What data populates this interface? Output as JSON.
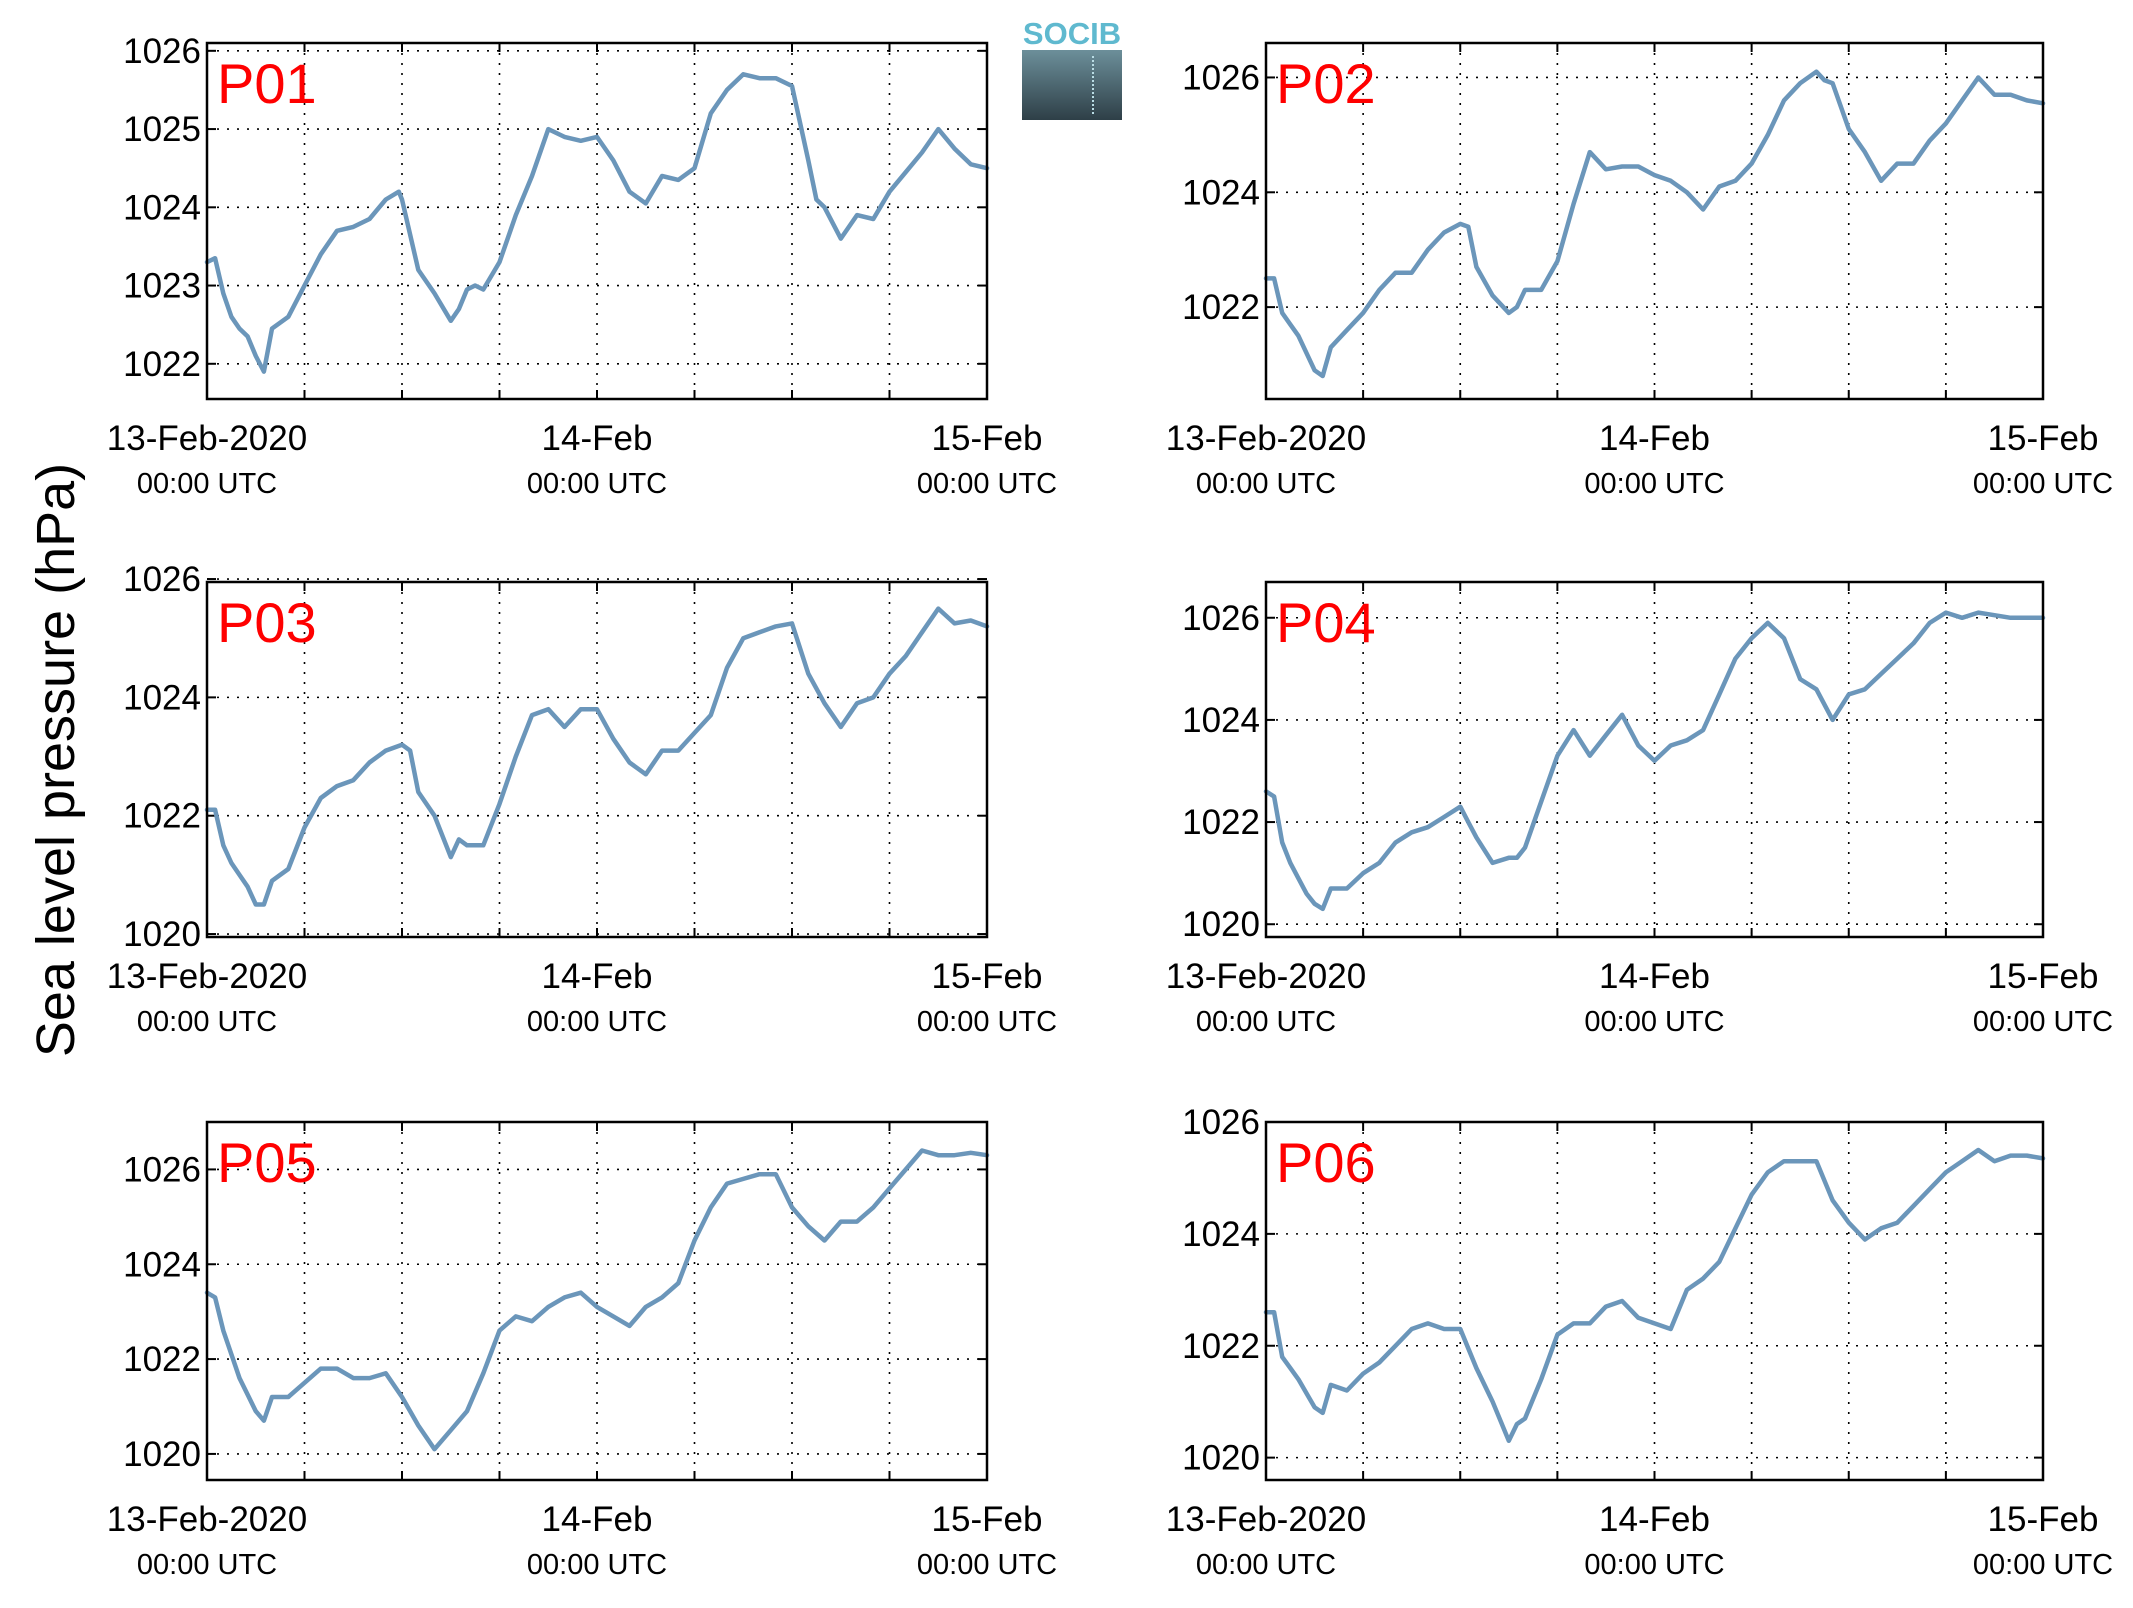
{
  "figure": {
    "ylabel": "Sea level pressure (hPa)",
    "logo_text": "SOCIB",
    "line_color": "#6b96ba",
    "station_label_color": "#ff0000"
  },
  "chart_data": [
    {
      "type": "line",
      "title": "P01",
      "x_range": [
        0,
        48
      ],
      "ylim": [
        1021.55,
        1026.1
      ],
      "yticks": [
        1022,
        1023,
        1024,
        1025,
        1026
      ],
      "x_tick_labels": [
        {
          "h": 0,
          "date": "13-Feb-2020",
          "time": "00:00 UTC"
        },
        {
          "h": 24,
          "date": "14-Feb",
          "time": "00:00 UTC"
        },
        {
          "h": 48,
          "date": "15-Feb",
          "time": "00:00 UTC"
        }
      ],
      "grid": true,
      "series": [
        {
          "x": [
            0,
            0.5,
            1,
            1.5,
            2,
            2.5,
            3,
            3.5,
            4,
            5,
            6,
            7,
            8,
            9,
            10,
            11,
            11.8,
            12,
            13,
            14,
            15,
            15.5,
            16,
            16.5,
            17,
            18,
            19,
            20,
            21,
            22,
            23,
            24,
            25,
            26,
            27,
            28,
            29,
            30,
            31,
            32,
            33,
            34,
            35,
            36,
            37,
            37.5,
            38,
            39,
            40,
            41,
            42,
            43,
            44,
            45,
            46,
            47,
            48
          ],
          "y": [
            1023.3,
            1023.35,
            1022.9,
            1022.6,
            1022.45,
            1022.35,
            1022.1,
            1021.9,
            1022.45,
            1022.6,
            1023.0,
            1023.4,
            1023.7,
            1023.75,
            1023.85,
            1024.1,
            1024.2,
            1024.1,
            1023.2,
            1022.9,
            1022.55,
            1022.7,
            1022.95,
            1023.0,
            1022.95,
            1023.3,
            1023.9,
            1024.4,
            1025.0,
            1024.9,
            1024.85,
            1024.9,
            1024.6,
            1024.2,
            1024.05,
            1024.4,
            1024.35,
            1024.5,
            1025.2,
            1025.5,
            1025.7,
            1025.65,
            1025.65,
            1025.55,
            1024.6,
            1024.1,
            1024.0,
            1023.6,
            1023.9,
            1023.85,
            1024.2,
            1024.45,
            1024.7,
            1025.0,
            1024.75,
            1024.55,
            1024.5
          ]
        }
      ]
    },
    {
      "type": "line",
      "title": "P02",
      "x_range": [
        0,
        48
      ],
      "ylim": [
        1020.4,
        1026.6
      ],
      "yticks": [
        1022,
        1024,
        1026
      ],
      "x_tick_labels": [
        {
          "h": 0,
          "date": "13-Feb-2020",
          "time": "00:00 UTC"
        },
        {
          "h": 24,
          "date": "14-Feb",
          "time": "00:00 UTC"
        },
        {
          "h": 48,
          "date": "15-Feb",
          "time": "00:00 UTC"
        }
      ],
      "grid": true,
      "series": [
        {
          "x": [
            0,
            0.5,
            1,
            1.5,
            2,
            2.5,
            3,
            3.5,
            4,
            5,
            6,
            7,
            8,
            9,
            10,
            11,
            12,
            12.5,
            13,
            14,
            15,
            15.5,
            16,
            17,
            18,
            19,
            20,
            21,
            22,
            23,
            24,
            25,
            26,
            27,
            28,
            29,
            30,
            31,
            32,
            33,
            34,
            34.5,
            35,
            36,
            37,
            38,
            39,
            40,
            41,
            42,
            43,
            44,
            45,
            46,
            47,
            48
          ],
          "y": [
            1022.5,
            1022.5,
            1021.9,
            1021.7,
            1021.5,
            1021.2,
            1020.9,
            1020.8,
            1021.3,
            1021.6,
            1021.9,
            1022.3,
            1022.6,
            1022.6,
            1023.0,
            1023.3,
            1023.45,
            1023.4,
            1022.7,
            1022.2,
            1021.9,
            1022.0,
            1022.3,
            1022.3,
            1022.8,
            1023.8,
            1024.7,
            1024.4,
            1024.45,
            1024.45,
            1024.3,
            1024.2,
            1024.0,
            1023.7,
            1024.1,
            1024.2,
            1024.5,
            1025.0,
            1025.6,
            1025.9,
            1026.1,
            1025.95,
            1025.9,
            1025.1,
            1024.7,
            1024.2,
            1024.5,
            1024.5,
            1024.9,
            1025.2,
            1025.6,
            1026.0,
            1025.7,
            1025.7,
            1025.6,
            1025.55
          ]
        }
      ]
    },
    {
      "type": "line",
      "title": "P03",
      "x_range": [
        0,
        48
      ],
      "ylim": [
        1019.95,
        1025.95
      ],
      "yticks": [
        1020,
        1022,
        1024,
        1026
      ],
      "x_tick_labels": [
        {
          "h": 0,
          "date": "13-Feb-2020",
          "time": "00:00 UTC"
        },
        {
          "h": 24,
          "date": "14-Feb",
          "time": "00:00 UTC"
        },
        {
          "h": 48,
          "date": "15-Feb",
          "time": "00:00 UTC"
        }
      ],
      "grid": true,
      "series": [
        {
          "x": [
            0,
            0.5,
            1,
            1.5,
            2,
            2.5,
            3,
            3.5,
            4,
            5,
            6,
            7,
            8,
            9,
            10,
            11,
            12,
            12.5,
            13,
            14,
            15,
            15.5,
            16,
            17,
            18,
            19,
            20,
            21,
            22,
            23,
            24,
            25,
            26,
            27,
            28,
            29,
            30,
            31,
            32,
            33,
            34,
            35,
            36,
            37,
            38,
            39,
            40,
            41,
            42,
            43,
            44,
            45,
            46,
            47,
            48
          ],
          "y": [
            1022.1,
            1022.1,
            1021.5,
            1021.2,
            1021.0,
            1020.8,
            1020.5,
            1020.5,
            1020.9,
            1021.1,
            1021.8,
            1022.3,
            1022.5,
            1022.6,
            1022.9,
            1023.1,
            1023.2,
            1023.1,
            1022.4,
            1022.0,
            1021.3,
            1021.6,
            1021.5,
            1021.5,
            1022.2,
            1023.0,
            1023.7,
            1023.8,
            1023.5,
            1023.8,
            1023.8,
            1023.3,
            1022.9,
            1022.7,
            1023.1,
            1023.1,
            1023.4,
            1023.7,
            1024.5,
            1025.0,
            1025.1,
            1025.2,
            1025.25,
            1024.4,
            1023.9,
            1023.5,
            1023.9,
            1024.0,
            1024.4,
            1024.7,
            1025.1,
            1025.5,
            1025.25,
            1025.3,
            1025.2
          ]
        }
      ]
    },
    {
      "type": "line",
      "title": "P04",
      "x_range": [
        0,
        48
      ],
      "ylim": [
        1019.75,
        1026.7
      ],
      "yticks": [
        1020,
        1022,
        1024,
        1026
      ],
      "x_tick_labels": [
        {
          "h": 0,
          "date": "13-Feb-2020",
          "time": "00:00 UTC"
        },
        {
          "h": 24,
          "date": "14-Feb",
          "time": "00:00 UTC"
        },
        {
          "h": 48,
          "date": "15-Feb",
          "time": "00:00 UTC"
        }
      ],
      "grid": true,
      "series": [
        {
          "x": [
            0,
            0.5,
            1,
            1.5,
            2,
            2.5,
            3,
            3.5,
            4,
            5,
            6,
            7,
            8,
            9,
            10,
            11,
            12,
            12.5,
            13,
            14,
            15,
            15.5,
            16,
            17,
            18,
            19,
            20,
            21,
            22,
            23,
            24,
            25,
            26,
            27,
            28,
            29,
            30,
            31,
            32,
            33,
            34,
            35,
            36,
            37,
            38,
            39,
            40,
            41,
            42,
            43,
            44,
            45,
            46,
            47,
            48
          ],
          "y": [
            1022.6,
            1022.5,
            1021.6,
            1021.2,
            1020.9,
            1020.6,
            1020.4,
            1020.3,
            1020.7,
            1020.7,
            1021.0,
            1021.2,
            1021.6,
            1021.8,
            1021.9,
            1022.1,
            1022.3,
            1022.0,
            1021.7,
            1021.2,
            1021.3,
            1021.3,
            1021.5,
            1022.4,
            1023.3,
            1023.8,
            1023.3,
            1023.7,
            1024.1,
            1023.5,
            1023.2,
            1023.5,
            1023.6,
            1023.8,
            1024.5,
            1025.2,
            1025.6,
            1025.9,
            1025.6,
            1024.8,
            1024.6,
            1024.0,
            1024.5,
            1024.6,
            1024.9,
            1025.2,
            1025.5,
            1025.9,
            1026.1,
            1026.0,
            1026.1,
            1026.05,
            1026.0,
            1026.0,
            1026.0
          ]
        }
      ]
    },
    {
      "type": "line",
      "title": "P05",
      "x_range": [
        0,
        48
      ],
      "ylim": [
        1019.45,
        1027.0
      ],
      "yticks": [
        1020,
        1022,
        1024,
        1026
      ],
      "x_tick_labels": [
        {
          "h": 0,
          "date": "13-Feb-2020",
          "time": "00:00 UTC"
        },
        {
          "h": 24,
          "date": "14-Feb",
          "time": "00:00 UTC"
        },
        {
          "h": 48,
          "date": "15-Feb",
          "time": "00:00 UTC"
        }
      ],
      "grid": true,
      "series": [
        {
          "x": [
            0,
            0.5,
            1,
            1.5,
            2,
            3,
            3.5,
            4,
            5,
            6,
            7,
            8,
            9,
            10,
            11,
            12,
            13,
            14,
            15,
            15.5,
            16,
            17,
            18,
            19,
            20,
            21,
            22,
            23,
            24,
            25,
            26,
            27,
            28,
            29,
            30,
            31,
            32,
            33,
            34,
            35,
            36,
            37,
            38,
            39,
            40,
            41,
            42,
            43,
            44,
            45,
            46,
            47,
            48
          ],
          "y": [
            1023.4,
            1023.3,
            1022.6,
            1022.1,
            1021.6,
            1020.9,
            1020.7,
            1021.2,
            1021.2,
            1021.5,
            1021.8,
            1021.8,
            1021.6,
            1021.6,
            1021.7,
            1021.2,
            1020.6,
            1020.1,
            1020.5,
            1020.7,
            1020.9,
            1021.7,
            1022.6,
            1022.9,
            1022.8,
            1023.1,
            1023.3,
            1023.4,
            1023.1,
            1022.9,
            1022.7,
            1023.1,
            1023.3,
            1023.6,
            1024.5,
            1025.2,
            1025.7,
            1025.8,
            1025.9,
            1025.9,
            1025.2,
            1024.8,
            1024.5,
            1024.9,
            1024.9,
            1025.2,
            1025.6,
            1026.0,
            1026.4,
            1026.3,
            1026.3,
            1026.35,
            1026.3
          ]
        }
      ]
    },
    {
      "type": "line",
      "title": "P06",
      "x_range": [
        0,
        48
      ],
      "ylim": [
        1019.6,
        1026.0
      ],
      "yticks": [
        1020,
        1022,
        1024,
        1026
      ],
      "x_tick_labels": [
        {
          "h": 0,
          "date": "13-Feb-2020",
          "time": "00:00 UTC"
        },
        {
          "h": 24,
          "date": "14-Feb",
          "time": "00:00 UTC"
        },
        {
          "h": 48,
          "date": "15-Feb",
          "time": "00:00 UTC"
        }
      ],
      "grid": true,
      "series": [
        {
          "x": [
            0,
            0.5,
            1,
            1.5,
            2,
            3,
            3.5,
            4,
            5,
            6,
            7,
            8,
            9,
            10,
            11,
            12,
            13,
            14,
            15,
            15.5,
            16,
            17,
            18,
            19,
            20,
            21,
            22,
            23,
            24,
            25,
            26,
            27,
            28,
            29,
            30,
            31,
            32,
            33,
            34,
            35,
            36,
            37,
            38,
            39,
            40,
            41,
            42,
            43,
            44,
            45,
            46,
            47,
            48
          ],
          "y": [
            1022.6,
            1022.6,
            1021.8,
            1021.6,
            1021.4,
            1020.9,
            1020.8,
            1021.3,
            1021.2,
            1021.5,
            1021.7,
            1022.0,
            1022.3,
            1022.4,
            1022.3,
            1022.3,
            1021.6,
            1021.0,
            1020.3,
            1020.6,
            1020.7,
            1021.4,
            1022.2,
            1022.4,
            1022.4,
            1022.7,
            1022.8,
            1022.5,
            1022.4,
            1022.3,
            1023.0,
            1023.2,
            1023.5,
            1024.1,
            1024.7,
            1025.1,
            1025.3,
            1025.3,
            1025.3,
            1024.6,
            1024.2,
            1023.9,
            1024.1,
            1024.2,
            1024.5,
            1024.8,
            1025.1,
            1025.3,
            1025.5,
            1025.3,
            1025.4,
            1025.4,
            1025.35
          ]
        }
      ]
    }
  ]
}
